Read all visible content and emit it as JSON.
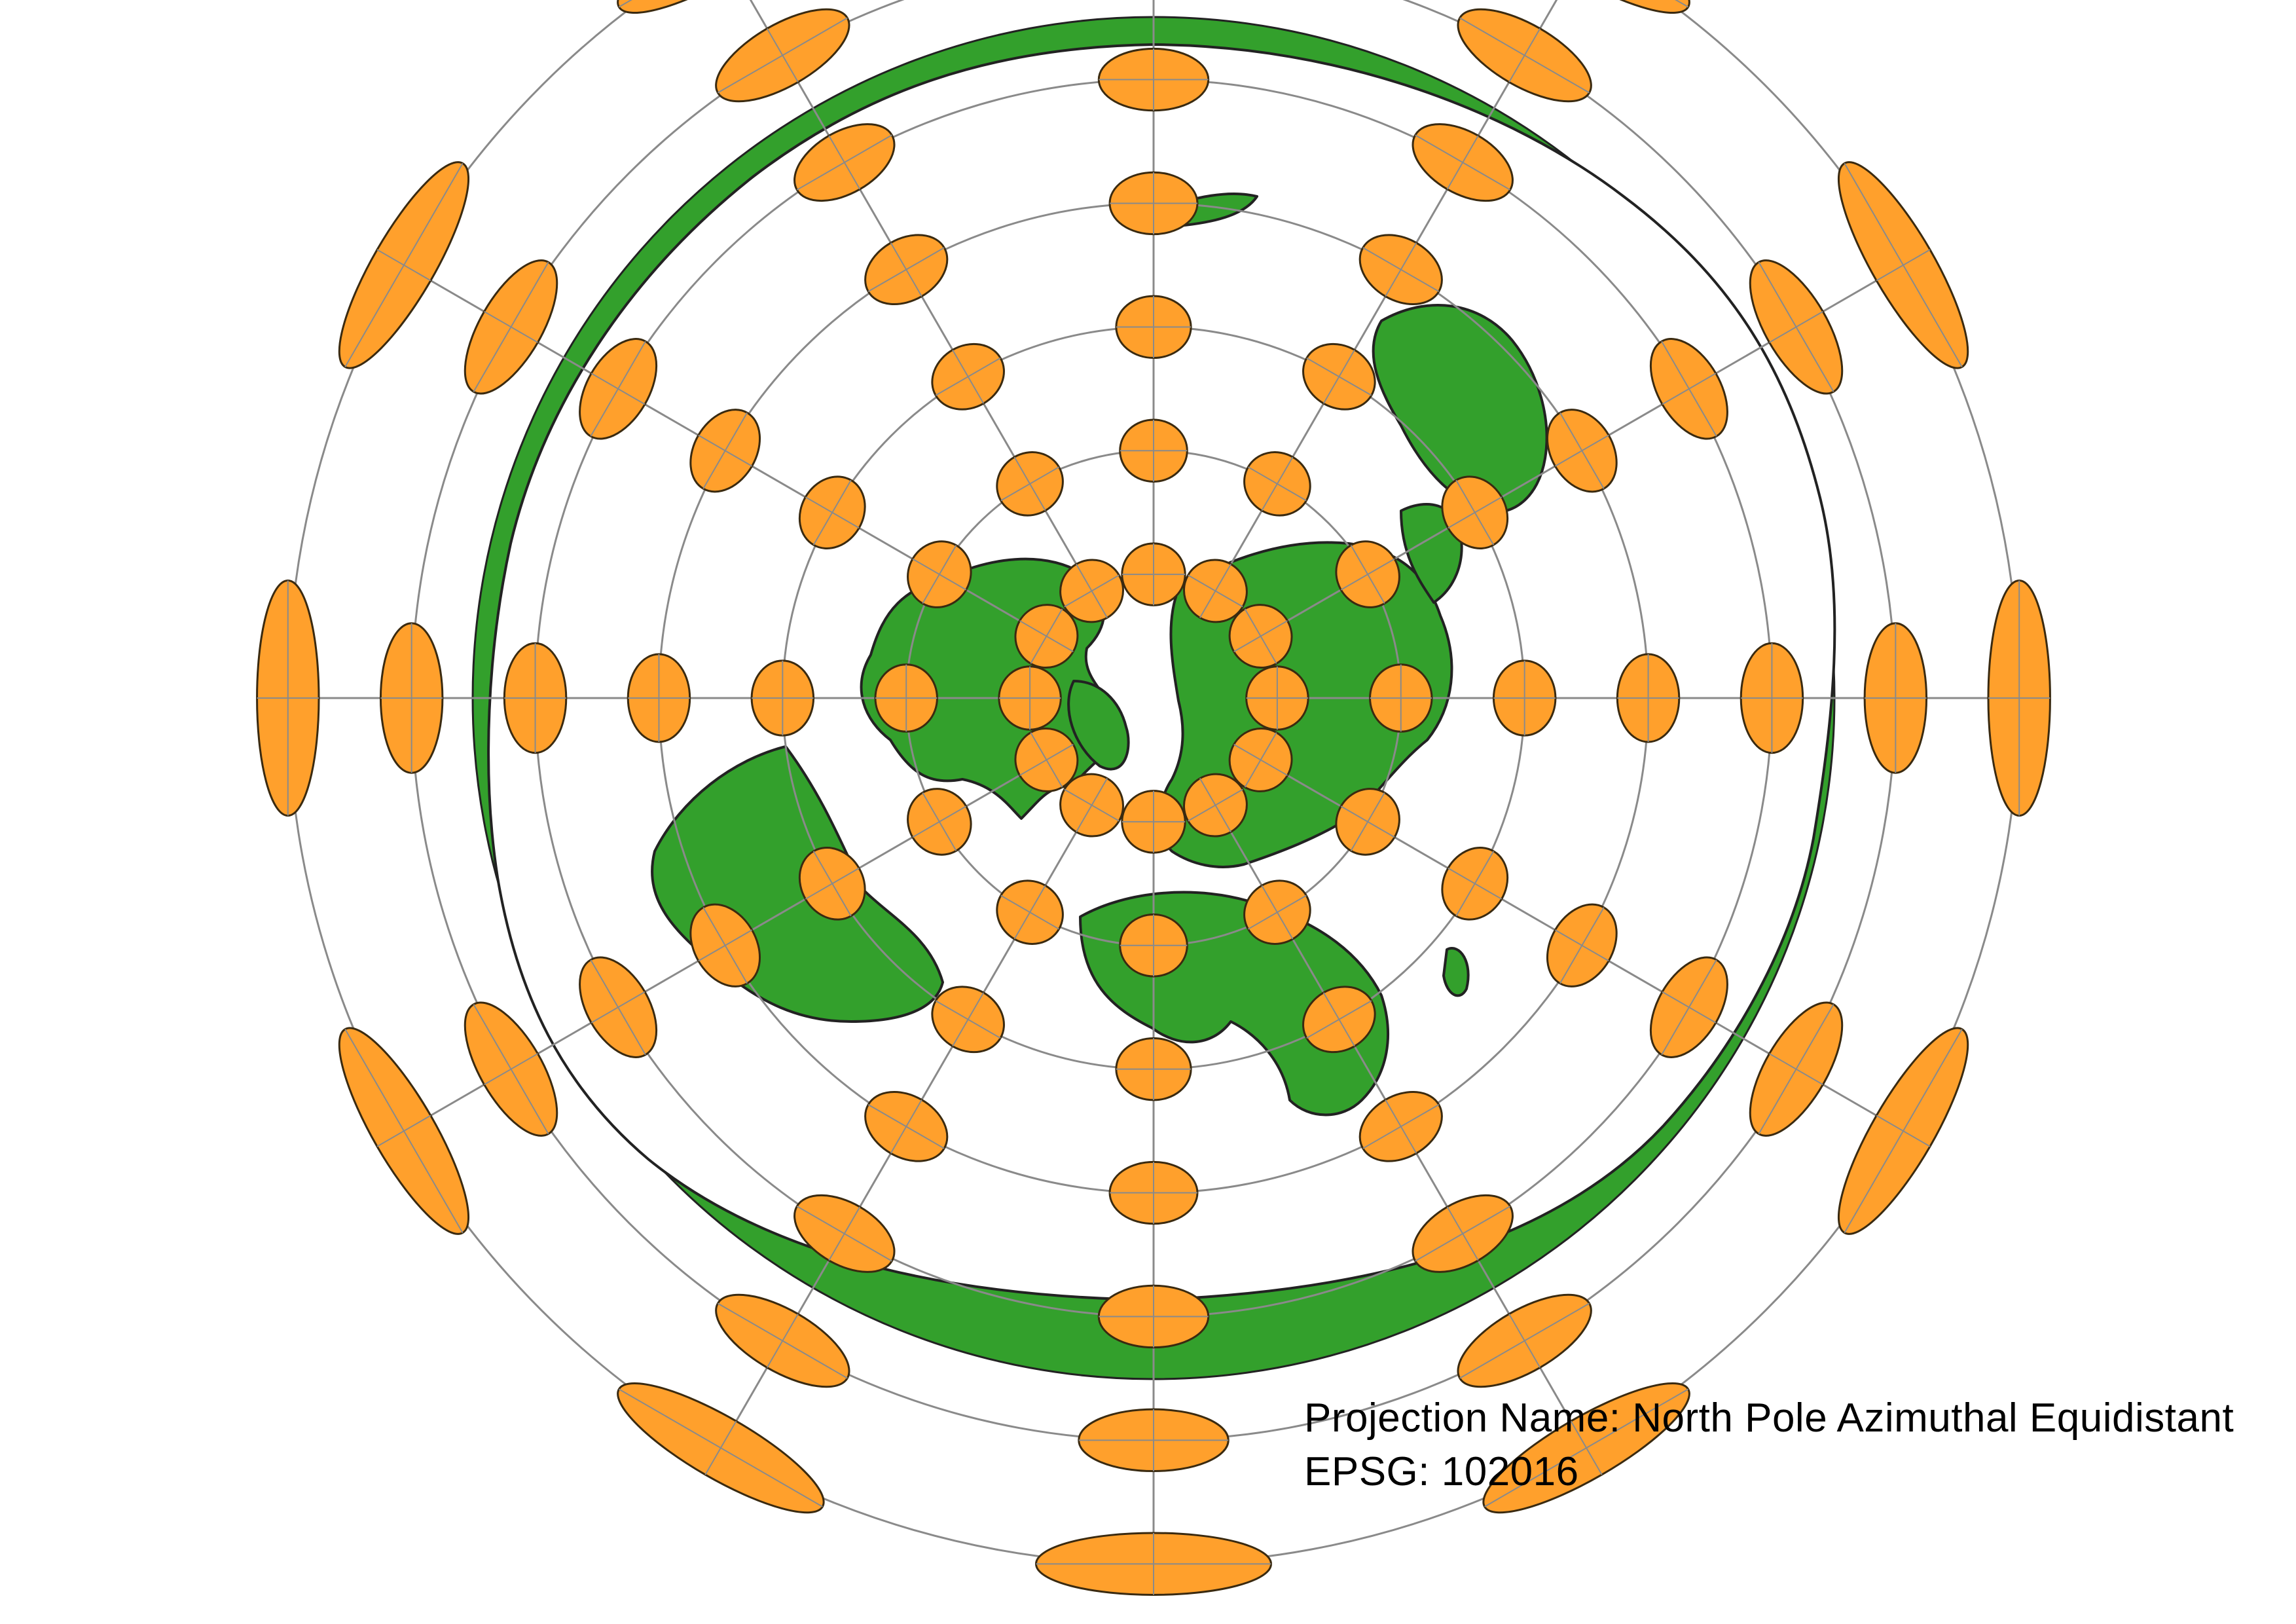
{
  "caption": {
    "projection_label": "Projection Name: North Pole Azimuthal Equidistant",
    "epsg_label": "EPSG: 102016"
  },
  "colors": {
    "land": "#33a02c",
    "land_outline": "#222222",
    "ellipse_fill": "#ffa02c",
    "ellipse_outline": "#3a2a10",
    "graticule": "#8a8a8a",
    "ocean": "#ffffff"
  },
  "map": {
    "projection": "north-pole-azimuthal-equidistant",
    "graticule_latitudes_deg": [
      70,
      50,
      30,
      10,
      -10,
      -30,
      -50
    ],
    "graticule_meridian_step_deg": 30,
    "tissot_indicatrix_latitudes_deg": [
      70,
      50,
      30,
      10,
      -10,
      -30,
      -50
    ],
    "tissot_indicatrix_meridian_step_deg": 30,
    "antarctica_ring": true
  }
}
